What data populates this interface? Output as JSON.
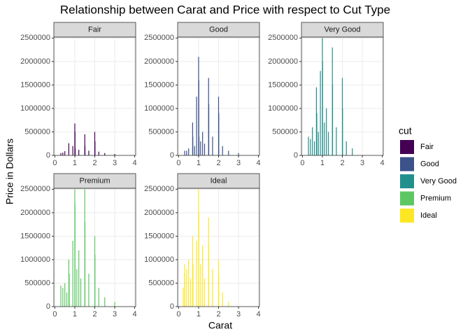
{
  "chart_data": {
    "type": "bar",
    "facets": true,
    "title": "Relationship between Carat and Price with respect to Cut Type",
    "x_label": "Carat",
    "y_label": "Price in Dollars",
    "legend_title": "cut",
    "xlim": [
      -0.05,
      4.05
    ],
    "ylim": [
      0,
      2520000
    ],
    "xticks": [
      0,
      1,
      2,
      3,
      4
    ],
    "yticks": [
      0,
      500000,
      1000000,
      1500000,
      2000000,
      2500000
    ],
    "grid": true,
    "series": [
      {
        "name": "Fair",
        "color": "#440154",
        "x": [
          0.3,
          0.4,
          0.5,
          0.7,
          0.9,
          1.0,
          1.01,
          1.02,
          1.2,
          1.5,
          1.51,
          1.7,
          2.0,
          2.01,
          2.2,
          2.5,
          3.0
        ],
        "values": [
          50000,
          60000,
          90000,
          260000,
          200000,
          680000,
          500000,
          150000,
          120000,
          450000,
          200000,
          100000,
          500000,
          300000,
          80000,
          50000,
          30000
        ]
      },
      {
        "name": "Good",
        "color": "#3B528B",
        "x": [
          0.3,
          0.4,
          0.5,
          0.7,
          0.71,
          0.8,
          0.9,
          1.0,
          1.01,
          1.02,
          1.1,
          1.2,
          1.3,
          1.5,
          1.51,
          1.7,
          2.0,
          2.01,
          2.2,
          2.5,
          3.0
        ],
        "values": [
          100000,
          100000,
          150000,
          700000,
          400000,
          200000,
          1250000,
          2100000,
          1600000,
          400000,
          300000,
          500000,
          250000,
          1650000,
          1100000,
          400000,
          1250000,
          900000,
          200000,
          100000,
          50000
        ]
      },
      {
        "name": "Very Good",
        "color": "#21908C",
        "x": [
          0.3,
          0.4,
          0.5,
          0.6,
          0.7,
          0.72,
          0.8,
          0.9,
          1.0,
          1.01,
          1.1,
          1.2,
          1.3,
          1.5,
          1.51,
          1.7,
          2.0,
          2.01,
          2.2,
          2.5
        ],
        "values": [
          400000,
          350000,
          600000,
          300000,
          1450000,
          900000,
          500000,
          1800000,
          2500000,
          2000000,
          700000,
          1000000,
          500000,
          2300000,
          1500000,
          600000,
          1650000,
          1000000,
          300000,
          150000
        ]
      },
      {
        "name": "Premium",
        "color": "#5DC863",
        "x": [
          0.3,
          0.4,
          0.5,
          0.6,
          0.7,
          0.72,
          0.9,
          1.0,
          1.01,
          1.1,
          1.2,
          1.3,
          1.5,
          1.51,
          1.7,
          2.0,
          2.01,
          2.2,
          2.5,
          3.0
        ],
        "values": [
          450000,
          400000,
          500000,
          300000,
          1000000,
          700000,
          1400000,
          2500000,
          2200000,
          800000,
          1200000,
          600000,
          2500000,
          1800000,
          700000,
          1500000,
          1100000,
          400000,
          200000,
          100000
        ]
      },
      {
        "name": "Ideal",
        "color": "#FDE725",
        "x": [
          0.23,
          0.3,
          0.31,
          0.4,
          0.5,
          0.6,
          0.7,
          0.72,
          0.9,
          1.0,
          1.01,
          1.1,
          1.2,
          1.3,
          1.5,
          1.51,
          1.7,
          2.0,
          2.01,
          2.2,
          2.5
        ],
        "values": [
          400000,
          900000,
          700000,
          800000,
          1000000,
          600000,
          1500000,
          900000,
          1400000,
          2500000,
          2000000,
          900000,
          1300000,
          600000,
          1900000,
          1300000,
          800000,
          1000000,
          700000,
          300000,
          100000
        ]
      }
    ]
  }
}
